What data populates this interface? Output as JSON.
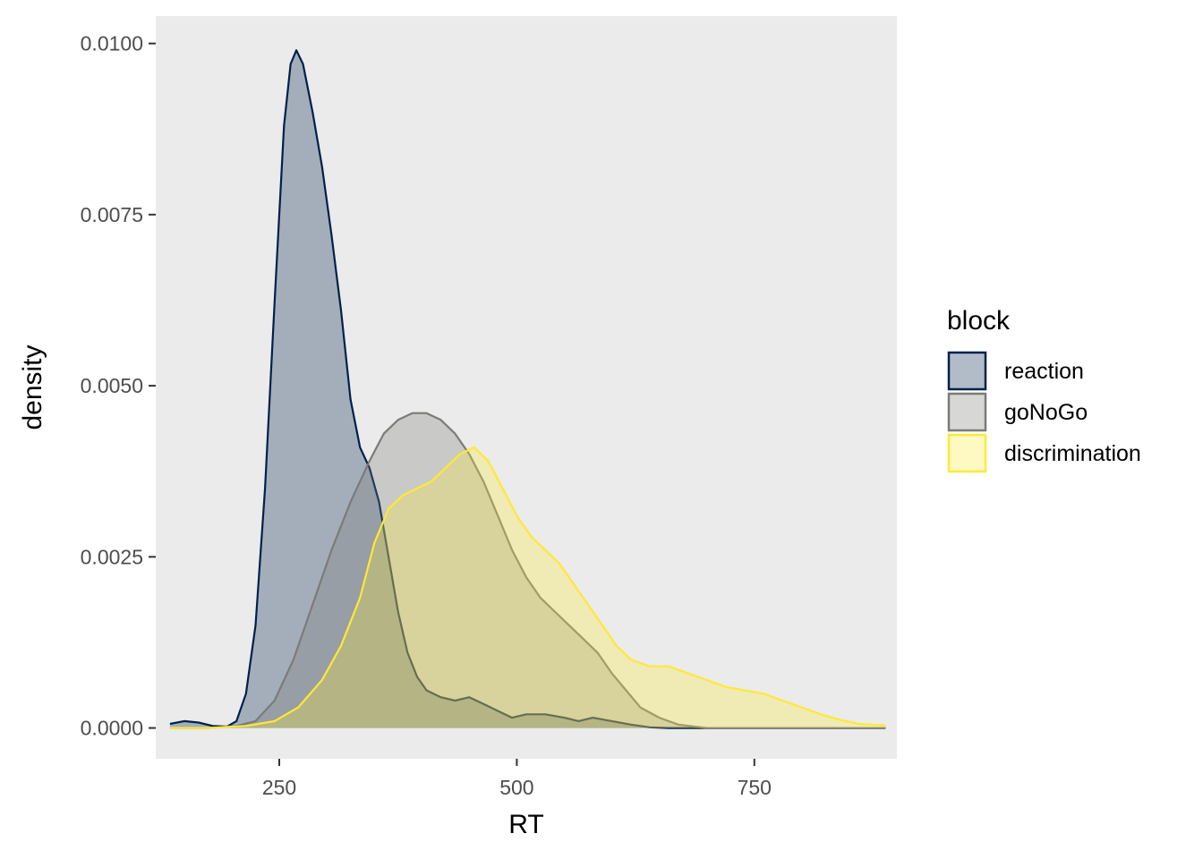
{
  "chart_data": {
    "type": "area",
    "subtype": "density",
    "xlabel": "RT",
    "ylabel": "density",
    "xlim": [
      120,
      900
    ],
    "ylim": [
      -0.00045,
      0.0104
    ],
    "x_ticks": [
      250,
      500,
      750
    ],
    "x_tick_labels": [
      "250",
      "500",
      "750"
    ],
    "y_ticks": [
      0.0,
      0.0025,
      0.005,
      0.0075,
      0.01
    ],
    "y_tick_labels": [
      "0.0000",
      "0.0025",
      "0.0050",
      "0.0075",
      "0.0100"
    ],
    "grid": false,
    "background": "#ebebeb",
    "legend": {
      "title": "block",
      "placement": "right"
    },
    "series": [
      {
        "name": "reaction",
        "color": "#00204d",
        "fill_opacity": 0.3,
        "points": [
          [
            135,
            6e-05
          ],
          [
            150,
            0.0001
          ],
          [
            165,
            8e-05
          ],
          [
            180,
            3e-05
          ],
          [
            195,
            2e-05
          ],
          [
            205,
            0.0001
          ],
          [
            215,
            0.0005
          ],
          [
            225,
            0.0015
          ],
          [
            235,
            0.0035
          ],
          [
            245,
            0.0062
          ],
          [
            255,
            0.0088
          ],
          [
            262,
            0.0097
          ],
          [
            268,
            0.0099
          ],
          [
            275,
            0.0097
          ],
          [
            285,
            0.009
          ],
          [
            295,
            0.0082
          ],
          [
            305,
            0.0072
          ],
          [
            315,
            0.0061
          ],
          [
            325,
            0.0048
          ],
          [
            335,
            0.0041
          ],
          [
            345,
            0.0038
          ],
          [
            355,
            0.0033
          ],
          [
            365,
            0.0025
          ],
          [
            375,
            0.0017
          ],
          [
            385,
            0.0011
          ],
          [
            395,
            0.00075
          ],
          [
            405,
            0.00055
          ],
          [
            420,
            0.00045
          ],
          [
            435,
            0.0004
          ],
          [
            450,
            0.00045
          ],
          [
            465,
            0.00035
          ],
          [
            480,
            0.00025
          ],
          [
            495,
            0.00015
          ],
          [
            510,
            0.0002
          ],
          [
            530,
            0.0002
          ],
          [
            550,
            0.00015
          ],
          [
            565,
            0.0001
          ],
          [
            580,
            0.00015
          ],
          [
            600,
            0.0001
          ],
          [
            620,
            5e-05
          ],
          [
            640,
            1e-05
          ],
          [
            660,
            0.0
          ],
          [
            700,
            0.0
          ],
          [
            800,
            0.0
          ],
          [
            888,
            0.0
          ]
        ]
      },
      {
        "name": "goNoGo",
        "color": "#7c7b78",
        "fill_opacity": 0.3,
        "points": [
          [
            135,
            0.0
          ],
          [
            175,
            0.0
          ],
          [
            205,
            3e-05
          ],
          [
            225,
            0.0001
          ],
          [
            245,
            0.0004
          ],
          [
            265,
            0.001
          ],
          [
            285,
            0.0018
          ],
          [
            305,
            0.0026
          ],
          [
            325,
            0.0033
          ],
          [
            345,
            0.0039
          ],
          [
            360,
            0.0043
          ],
          [
            375,
            0.0045
          ],
          [
            390,
            0.0046
          ],
          [
            405,
            0.0046
          ],
          [
            420,
            0.0045
          ],
          [
            435,
            0.0043
          ],
          [
            450,
            0.004
          ],
          [
            465,
            0.0036
          ],
          [
            480,
            0.0031
          ],
          [
            495,
            0.0026
          ],
          [
            510,
            0.0022
          ],
          [
            525,
            0.0019
          ],
          [
            540,
            0.0017
          ],
          [
            555,
            0.0015
          ],
          [
            570,
            0.0013
          ],
          [
            585,
            0.0011
          ],
          [
            600,
            0.0008
          ],
          [
            615,
            0.00055
          ],
          [
            630,
            0.0003
          ],
          [
            650,
            0.00015
          ],
          [
            670,
            5e-05
          ],
          [
            700,
            0.0
          ],
          [
            800,
            0.0
          ],
          [
            888,
            0.0
          ]
        ]
      },
      {
        "name": "discrimination",
        "color": "#fde937",
        "fill_opacity": 0.3,
        "points": [
          [
            135,
            0.0
          ],
          [
            175,
            0.0
          ],
          [
            215,
            3e-05
          ],
          [
            245,
            0.0001
          ],
          [
            270,
            0.0003
          ],
          [
            295,
            0.0007
          ],
          [
            315,
            0.0012
          ],
          [
            335,
            0.0019
          ],
          [
            350,
            0.0027
          ],
          [
            365,
            0.0032
          ],
          [
            380,
            0.0034
          ],
          [
            395,
            0.0035
          ],
          [
            410,
            0.0036
          ],
          [
            425,
            0.0038
          ],
          [
            440,
            0.004
          ],
          [
            455,
            0.0041
          ],
          [
            470,
            0.0039
          ],
          [
            485,
            0.0035
          ],
          [
            500,
            0.0031
          ],
          [
            515,
            0.0028
          ],
          [
            530,
            0.0026
          ],
          [
            545,
            0.0024
          ],
          [
            560,
            0.0021
          ],
          [
            575,
            0.0018
          ],
          [
            590,
            0.0015
          ],
          [
            605,
            0.0012
          ],
          [
            620,
            0.001
          ],
          [
            640,
            0.0009
          ],
          [
            660,
            0.0009
          ],
          [
            680,
            0.0008
          ],
          [
            700,
            0.0007
          ],
          [
            720,
            0.0006
          ],
          [
            740,
            0.00055
          ],
          [
            760,
            0.0005
          ],
          [
            780,
            0.0004
          ],
          [
            800,
            0.0003
          ],
          [
            820,
            0.0002
          ],
          [
            840,
            0.00012
          ],
          [
            860,
            6e-05
          ],
          [
            888,
            4e-05
          ]
        ]
      }
    ]
  }
}
